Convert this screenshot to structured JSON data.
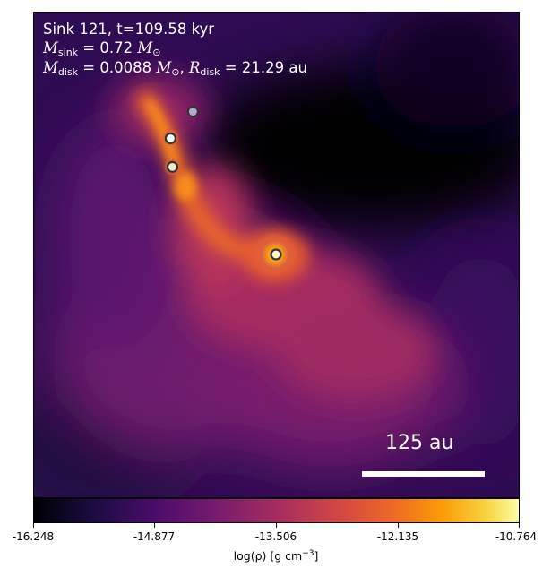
{
  "annotation": {
    "line1": "Sink 121, t=109.58 kyr",
    "m_symbol": "M",
    "msink_sub": "sink",
    "msink_value": " = 0.72 ",
    "msun_symbol": "M",
    "msun_sub": "⊙",
    "mdisk_sub": "disk",
    "mdisk_value": " = 0.0088 ",
    "separator": ", ",
    "r_symbol": "R",
    "rdisk_sub": "disk",
    "rdisk_value": " = 21.29 au"
  },
  "scale_bar": {
    "label": "125 au"
  },
  "colorbar": {
    "colormap": "inferno",
    "ticks": [
      "-16.248",
      "-14.877",
      "-13.506",
      "-12.135",
      "-10.764"
    ],
    "label_prefix": "log(ρ) [g cm",
    "label_exponent": "−3",
    "label_suffix": "]"
  },
  "colors": {
    "low": "#000004",
    "mid": "#a52c60",
    "high": "#fcffa4"
  }
}
